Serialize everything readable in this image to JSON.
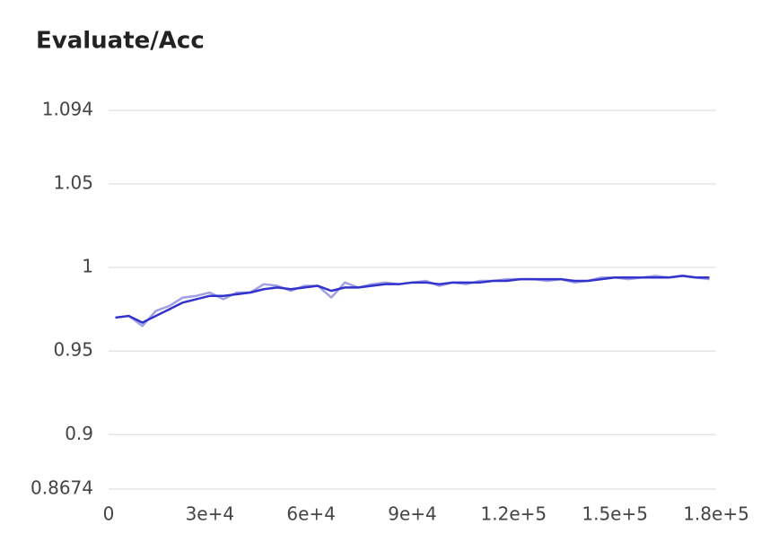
{
  "chart_data": {
    "type": "line",
    "title": "Evaluate/Acc",
    "x": [
      2000,
      6000,
      10000,
      14000,
      18000,
      22000,
      26000,
      30000,
      34000,
      38000,
      42000,
      46000,
      50000,
      54000,
      58000,
      62000,
      66000,
      70000,
      74000,
      78000,
      82000,
      86000,
      90000,
      94000,
      98000,
      102000,
      106000,
      110000,
      114000,
      118000,
      122000,
      126000,
      130000,
      134000,
      138000,
      142000,
      146000,
      150000,
      154000,
      158000,
      162000,
      166000,
      170000,
      174000,
      178000
    ],
    "series": [
      {
        "color": "#a0a0e4",
        "values": [
          0.97,
          0.971,
          0.965,
          0.974,
          0.977,
          0.982,
          0.983,
          0.985,
          0.981,
          0.985,
          0.985,
          0.99,
          0.989,
          0.986,
          0.989,
          0.989,
          0.982,
          0.991,
          0.988,
          0.99,
          0.991,
          0.99,
          0.991,
          0.992,
          0.989,
          0.991,
          0.99,
          0.992,
          0.992,
          0.993,
          0.993,
          0.993,
          0.992,
          0.993,
          0.991,
          0.992,
          0.994,
          0.994,
          0.993,
          0.994,
          0.995,
          0.994,
          0.995,
          0.994,
          0.993
        ]
      },
      {
        "color": "#3232cc",
        "values": [
          0.97,
          0.971,
          0.967,
          0.971,
          0.975,
          0.979,
          0.981,
          0.983,
          0.983,
          0.984,
          0.985,
          0.987,
          0.988,
          0.987,
          0.988,
          0.989,
          0.986,
          0.988,
          0.988,
          0.989,
          0.99,
          0.99,
          0.991,
          0.991,
          0.99,
          0.991,
          0.991,
          0.991,
          0.992,
          0.992,
          0.993,
          0.993,
          0.993,
          0.993,
          0.992,
          0.992,
          0.993,
          0.994,
          0.994,
          0.994,
          0.994,
          0.994,
          0.995,
          0.994,
          0.994
        ]
      }
    ],
    "xlim": [
      0,
      180000
    ],
    "xticks": [
      0,
      {
        "value": 30000,
        "label": "3e+4"
      },
      {
        "value": 60000,
        "label": "6e+4"
      },
      {
        "value": 90000,
        "label": "9e+4"
      },
      {
        "value": 120000,
        "label": "1.2e+5"
      },
      {
        "value": 150000,
        "label": "1.5e+5"
      },
      {
        "value": 180000,
        "label": "1.8e+5"
      }
    ],
    "ylim": [
      0.8674,
      1.094
    ],
    "yticks": [
      0.8674,
      0.9,
      0.95,
      1,
      1.05,
      1.094
    ],
    "grid": true
  }
}
